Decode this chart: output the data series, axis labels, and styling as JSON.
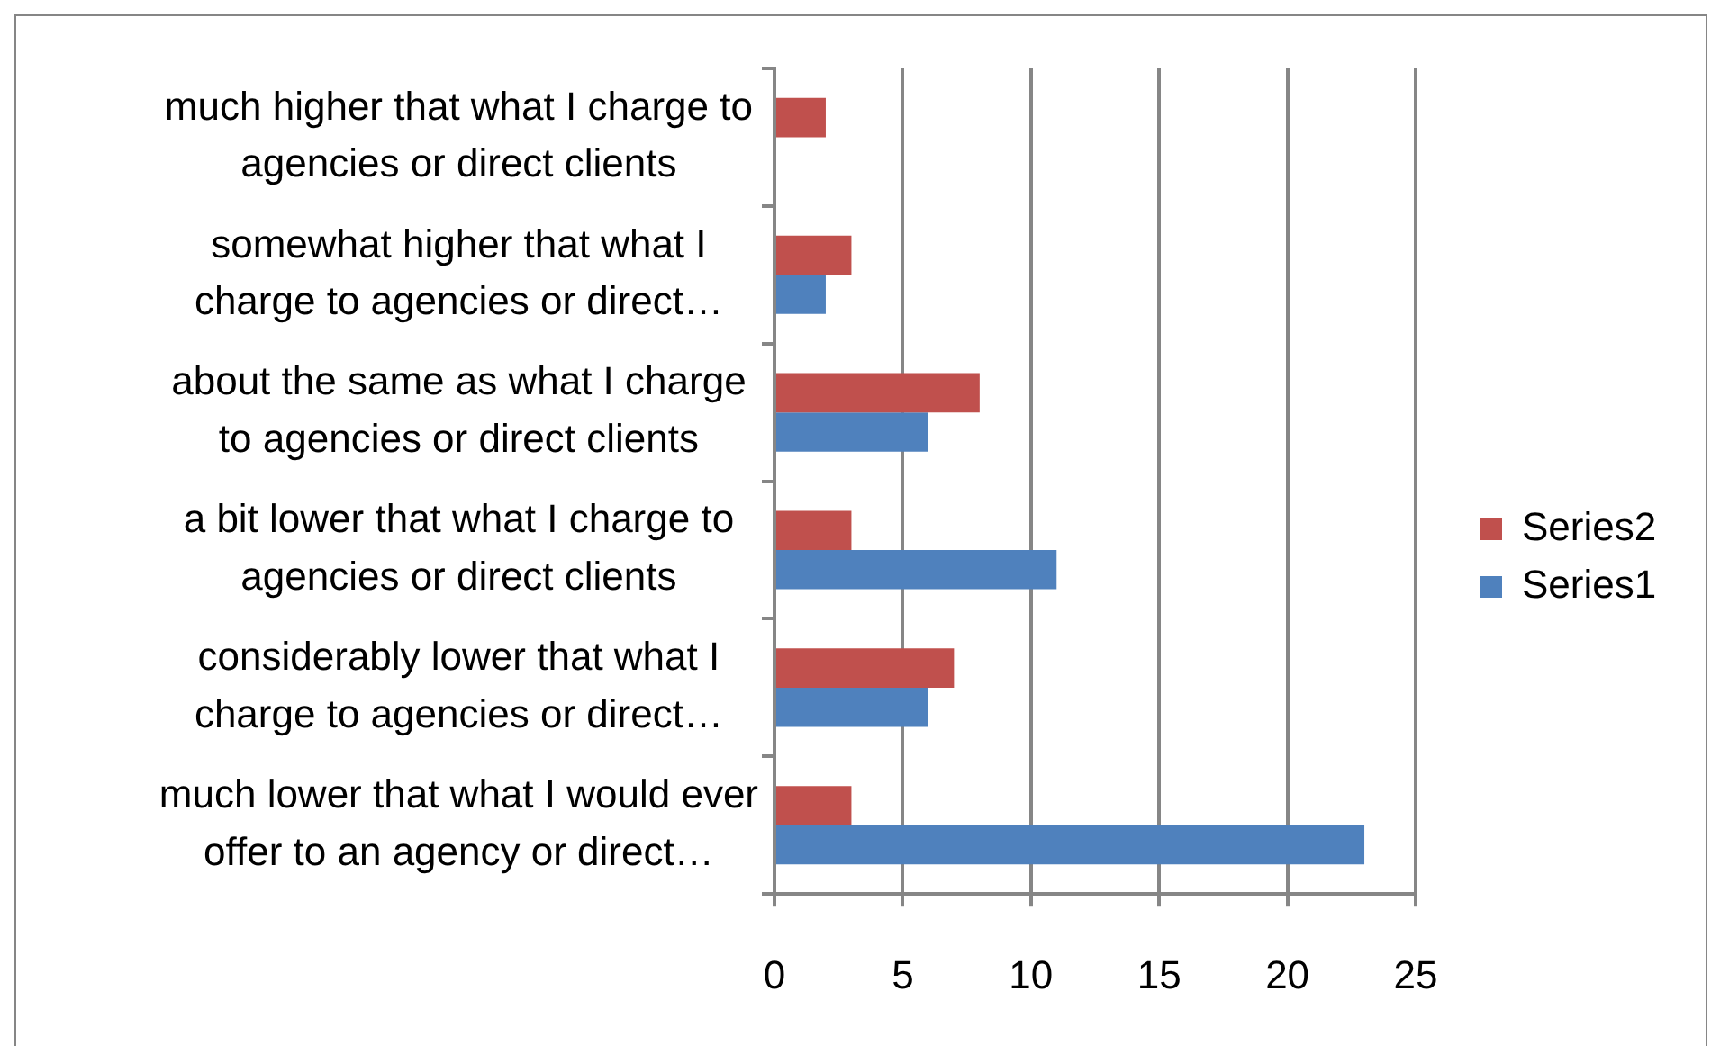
{
  "chart_data": {
    "type": "bar",
    "orientation": "horizontal",
    "categories": [
      "much higher that what I charge to agencies or direct clients",
      "somewhat higher that what I charge to agencies or direct…",
      "about the same as what I charge to agencies or direct clients",
      "a bit lower that what I charge to agencies or direct clients",
      "considerably lower that what I charge to agencies or direct…",
      "much lower that what I would ever offer to an agency or direct…"
    ],
    "series": [
      {
        "name": "Series2",
        "color": "#c0504d",
        "values": [
          2,
          3,
          8,
          3,
          7,
          3
        ]
      },
      {
        "name": "Series1",
        "color": "#4f81bd",
        "values": [
          null,
          2,
          6,
          11,
          6,
          23
        ]
      }
    ],
    "xlim": [
      0,
      25
    ],
    "xticks": [
      0,
      5,
      10,
      15,
      20,
      25
    ],
    "grid": "x",
    "legend": "right"
  }
}
